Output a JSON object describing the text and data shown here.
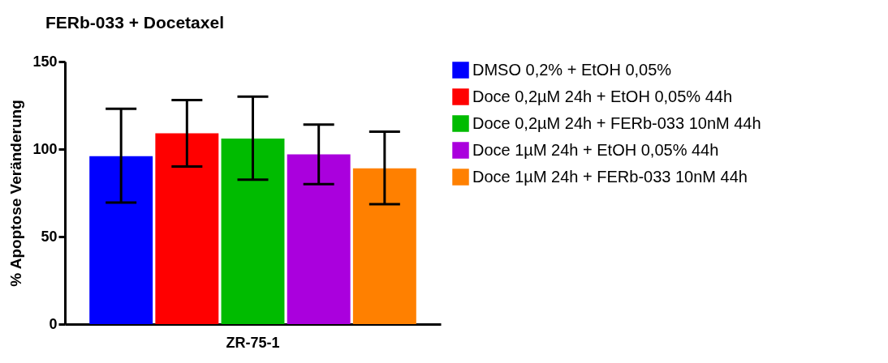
{
  "chart_data": {
    "type": "bar",
    "title": "FERb-033 + Docetaxel",
    "ylabel": "% Apoptose Veränderung",
    "categories": [
      "ZR-75-1"
    ],
    "series": [
      {
        "name": "DMSO 0,2% + EtOH 0,05%",
        "color": "#0000ff",
        "values": [
          96
        ],
        "errors": [
          [
            69.5,
            123
          ]
        ]
      },
      {
        "name": "Doce 0,2µM 24h + EtOH 0,05% 44h",
        "color": "#ff0000",
        "values": [
          109
        ],
        "errors": [
          [
            90,
            128
          ]
        ]
      },
      {
        "name": "Doce 0,2µM 24h + FERb-033 10nM 44h",
        "color": "#00bb00",
        "values": [
          106
        ],
        "errors": [
          [
            82.5,
            130
          ]
        ]
      },
      {
        "name": "Doce 1µM 24h + EtOH 0,05% 44h",
        "color": "#aa00dd",
        "values": [
          97
        ],
        "errors": [
          [
            80,
            114
          ]
        ]
      },
      {
        "name": "Doce 1µM 24h + FERb-033 10nM 44h",
        "color": "#ff8000",
        "values": [
          89
        ],
        "errors": [
          [
            68.5,
            110
          ]
        ]
      }
    ],
    "ylim": [
      0,
      150
    ],
    "yticks": [
      0,
      50,
      100,
      150
    ],
    "grid": false,
    "legend": "top right"
  }
}
